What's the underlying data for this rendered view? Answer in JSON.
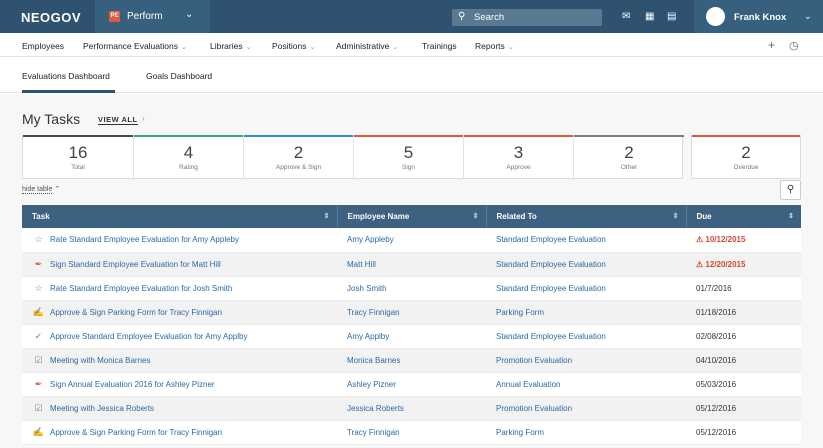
{
  "topbar": {
    "logo": "NEOGOV",
    "product_badge": "PE",
    "product_name": "Perform",
    "search_placeholder": "Search",
    "user_name": "Frank Knox"
  },
  "nav": {
    "items": [
      "Employees",
      "Performance Evaluations",
      "Libraries",
      "Positions",
      "Administrative",
      "Trainings",
      "Reports"
    ]
  },
  "tabs": [
    "Evaluations Dashboard",
    "Goals Dashboard"
  ],
  "tasks_header": {
    "title": "My Tasks",
    "view_all": "VIEW ALL"
  },
  "stats": [
    {
      "value": "16",
      "label": "Total",
      "color": ""
    },
    {
      "value": "4",
      "label": "Rating",
      "color": "#3aa57a"
    },
    {
      "value": "2",
      "label": "Approve & Sign",
      "color": "#2e8fd0"
    },
    {
      "value": "5",
      "label": "Sign",
      "color": "#e2553d"
    },
    {
      "value": "3",
      "label": "Approve",
      "color": "#e2553d"
    },
    {
      "value": "2",
      "label": "Other",
      "color": "#7a7a8a"
    }
  ],
  "overdue": {
    "value": "2",
    "label": "Overdue",
    "color": "#e2553d"
  },
  "hide_table": "hide table",
  "table": {
    "columns": [
      "Task",
      "Employee Name",
      "Related To",
      "Due"
    ],
    "rows": [
      {
        "icon": "star-icon",
        "glyph": "☆",
        "icon_color": "#888",
        "task": "Rate Standard Employee Evaluation for Amy Appleby",
        "employee": "Amy Appleby",
        "related": "Standard Employee Evaluation",
        "due": "10/12/2015",
        "overdue": true
      },
      {
        "icon": "pen-icon",
        "glyph": "✒",
        "icon_color": "#e2553d",
        "task": "Sign Standard Employee Evaluation for Matt Hill",
        "employee": "Matt Hill",
        "related": "Standard Employee Evaluation",
        "due": "12/20/2015",
        "overdue": true
      },
      {
        "icon": "star-icon",
        "glyph": "☆",
        "icon_color": "#888",
        "task": "Rate Standard Employee Evaluation for Josh Smith",
        "employee": "Josh Smith",
        "related": "Standard Employee Evaluation",
        "due": "01/7/2016",
        "overdue": false
      },
      {
        "icon": "approve-sign-icon",
        "glyph": "✍",
        "icon_color": "#e2553d",
        "task": "Approve & Sign Parking Form for Tracy Finnigan",
        "employee": "Tracy Finnigan",
        "related": "Parking Form",
        "due": "01/18/2016",
        "overdue": false
      },
      {
        "icon": "check-circle-icon",
        "glyph": "✓",
        "icon_color": "#2e8fd0",
        "task": "Approve Standard Employee Evaluation for Amy Applby",
        "employee": "Amy Applby",
        "related": "Standard Employee Evaluation",
        "due": "02/08/2016",
        "overdue": false
      },
      {
        "icon": "checkbox-icon",
        "glyph": "☑",
        "icon_color": "#888",
        "task": "Meeting with Monica Barnes",
        "employee": "Monica Barnes",
        "related": "Promotion Evaluation",
        "due": "04/10/2016",
        "overdue": false
      },
      {
        "icon": "pen-icon",
        "glyph": "✒",
        "icon_color": "#e2553d",
        "task": "Sign Annual Evaluation 2016 for Ashley Pizner",
        "employee": "Ashley Pizner",
        "related": "Annual Evaluation",
        "due": "05/03/2016",
        "overdue": false
      },
      {
        "icon": "checkbox-icon",
        "glyph": "☑",
        "icon_color": "#888",
        "task": "Meeting with Jessica Roberts",
        "employee": "Jessica Roberts",
        "related": "Promotion Evaluation",
        "due": "05/12/2016",
        "overdue": false
      },
      {
        "icon": "approve-sign-icon",
        "glyph": "✍",
        "icon_color": "#e2553d",
        "task": "Approve & Sign Parking Form for Tracy Finnigan",
        "employee": "Tracy Finnigan",
        "related": "Parking Form",
        "due": "05/12/2016",
        "overdue": false
      }
    ]
  }
}
